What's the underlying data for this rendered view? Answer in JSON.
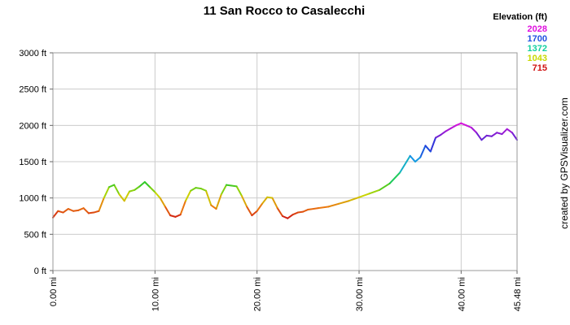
{
  "chart_data": {
    "type": "line",
    "title": "11 San Rocco to Casalecchi",
    "credit": "created by GPSVisualizer.com",
    "xlabel": "",
    "ylabel": "",
    "xlim": [
      0,
      45.48
    ],
    "ylim": [
      0,
      3000
    ],
    "grid": true,
    "x_ticks": [
      {
        "value": 0,
        "label": "0.00 mi"
      },
      {
        "value": 10,
        "label": "10.00 mi"
      },
      {
        "value": 20,
        "label": "20.00 mi"
      },
      {
        "value": 30,
        "label": "30.00 mi"
      },
      {
        "value": 40,
        "label": "40.00 mi"
      },
      {
        "value": 45.48,
        "label": "45.48 mi"
      }
    ],
    "y_ticks": [
      {
        "value": 0,
        "label": "0 ft"
      },
      {
        "value": 500,
        "label": "500 ft"
      },
      {
        "value": 1000,
        "label": "1000 ft"
      },
      {
        "value": 1500,
        "label": "1500 ft"
      },
      {
        "value": 2000,
        "label": "2000 ft"
      },
      {
        "value": 2500,
        "label": "2500 ft"
      },
      {
        "value": 3000,
        "label": "3000 ft"
      }
    ],
    "legend": {
      "title": "Elevation (ft)",
      "position": "top-right",
      "entries": [
        {
          "label": "2028",
          "value": 2028,
          "color": "#e010e0"
        },
        {
          "label": "1700",
          "value": 1700,
          "color": "#2050e0"
        },
        {
          "label": "1372",
          "value": 1372,
          "color": "#10d0a0"
        },
        {
          "label": "1043",
          "value": 1043,
          "color": "#c8d800"
        },
        {
          "label": "715",
          "value": 715,
          "color": "#d01010"
        }
      ]
    },
    "series": [
      {
        "x": [
          0,
          0.5,
          1,
          1.5,
          2,
          2.5,
          3,
          3.5,
          4,
          4.5,
          5,
          5.5,
          6,
          6.5,
          7,
          7.5,
          8,
          8.5,
          9,
          9.5,
          10,
          10.5,
          11,
          11.5,
          12,
          12.5,
          13,
          13.5,
          14,
          14.5,
          15,
          15.5,
          16,
          16.5,
          17,
          17.5,
          18,
          18.5,
          19,
          19.5,
          20,
          20.5,
          21,
          21.5,
          22,
          22.5,
          23,
          23.5,
          24,
          24.5,
          25,
          26,
          27,
          28,
          29,
          30,
          31,
          32,
          33,
          34,
          35,
          35.5,
          36,
          36.5,
          37,
          37.5,
          38,
          38.5,
          39,
          39.5,
          40,
          40.5,
          41,
          41.5,
          42,
          42.5,
          43,
          43.5,
          44,
          44.5,
          45,
          45.48
        ],
        "y": [
          730,
          820,
          800,
          850,
          820,
          830,
          860,
          790,
          800,
          820,
          1000,
          1150,
          1180,
          1050,
          960,
          1090,
          1110,
          1160,
          1220,
          1150,
          1080,
          1000,
          880,
          760,
          740,
          770,
          960,
          1100,
          1140,
          1130,
          1100,
          900,
          850,
          1050,
          1180,
          1170,
          1160,
          1030,
          880,
          760,
          820,
          920,
          1010,
          1000,
          860,
          750,
          720,
          770,
          800,
          810,
          840,
          860,
          880,
          920,
          960,
          1010,
          1060,
          1110,
          1200,
          1350,
          1580,
          1500,
          1560,
          1720,
          1640,
          1830,
          1870,
          1920,
          1960,
          2000,
          2030,
          2000,
          1970,
          1900,
          1800,
          1860,
          1850,
          1900,
          1880,
          1950,
          1900,
          1800
        ]
      }
    ]
  }
}
